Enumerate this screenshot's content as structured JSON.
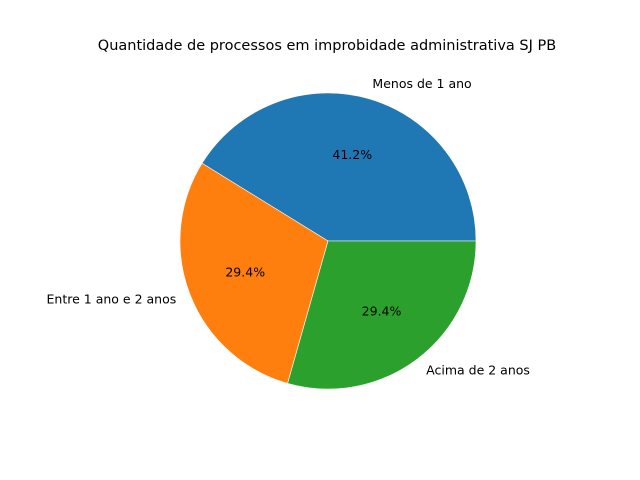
{
  "chart_data": {
    "type": "pie",
    "title": "Quantidade de processos em improbidade administrativa SJ PB",
    "labels": [
      "Menos de 1 ano",
      "Entre 1 ano e 2 anos",
      "Acima de 2 anos"
    ],
    "percent_labels": [
      "41.2%",
      "29.4%",
      "29.4%"
    ],
    "values": [
      41.2,
      29.4,
      29.4
    ],
    "colors": [
      "#1f77b4",
      "#ff7f0e",
      "#2ca02c"
    ],
    "start_angle_deg": 0,
    "direction": "counterclockwise",
    "legend": "none"
  }
}
